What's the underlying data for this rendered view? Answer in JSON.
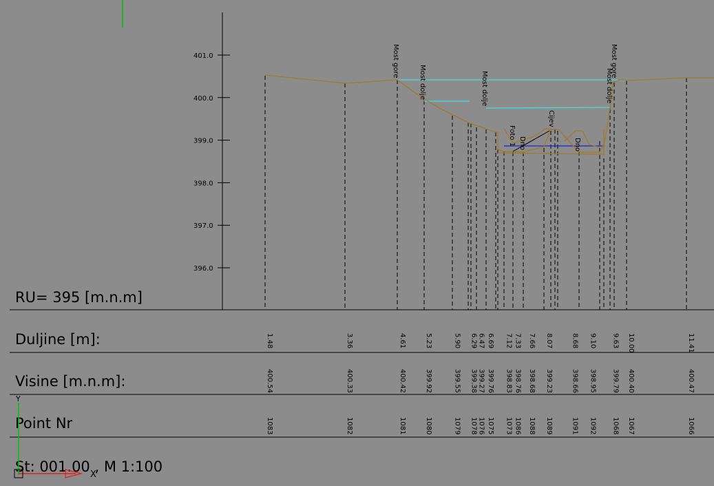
{
  "labels": {
    "ru": "RU= 395 [m.n.m]",
    "duljine": "Duljine [m]:",
    "visine": "Visine [m.n.m]:",
    "point_nr": "Point Nr",
    "scale": "St: 001.00 , M 1:100"
  },
  "axis": {
    "ticks": [
      "401.0",
      "400.0",
      "399.0",
      "398.0",
      "397.0",
      "396.0"
    ],
    "reference_level": 395
  },
  "ucs": {
    "y_label": "Y",
    "x_label": "X"
  },
  "colors": {
    "background": "#8c8c8c",
    "terrain": "#a07a2c",
    "water_level": "#40dede",
    "inner_level": "#1f1fd0"
  },
  "stations": [
    {
      "x": "1.48",
      "h": "400.54",
      "nr": "1083"
    },
    {
      "x": "3.36",
      "h": "400.33",
      "nr": "1082"
    },
    {
      "x": "4.61",
      "h": "400.42",
      "nr": "1081"
    },
    {
      "x": "5.23",
      "h": "399.92",
      "nr": "1080"
    },
    {
      "x": "5.90",
      "h": "399.55",
      "nr": "1079"
    },
    {
      "x": "6.29",
      "h": "399.38",
      "nr": "1078"
    },
    {
      "x": "6.47",
      "h": "399.27",
      "nr": "1076"
    },
    {
      "x": "6.69",
      "h": "399.76",
      "nr": "1075"
    },
    {
      "x": "7.12",
      "h": "398.83",
      "nr": "1073"
    },
    {
      "x": "7.33",
      "h": "398.76",
      "nr": "1086"
    },
    {
      "x": "7.66",
      "h": "398.68",
      "nr": "1088"
    },
    {
      "x": "8.07",
      "h": "399.23",
      "nr": "1089"
    },
    {
      "x": "8.68",
      "h": "398.66",
      "nr": "1091"
    },
    {
      "x": "9.10",
      "h": "398.95",
      "nr": "1092"
    },
    {
      "x": "9.63",
      "h": "399.79",
      "nr": "1068"
    },
    {
      "x": "10.00",
      "h": "400.40",
      "nr": "1067"
    },
    {
      "x": "11.41",
      "h": "400.47",
      "nr": "1066"
    }
  ],
  "annotations": [
    "Most gore",
    "Most dolje",
    "Most dolje",
    "Foto 1",
    "Dno",
    "Cijev",
    "Dno",
    "Most gore",
    "Most dolje"
  ]
}
